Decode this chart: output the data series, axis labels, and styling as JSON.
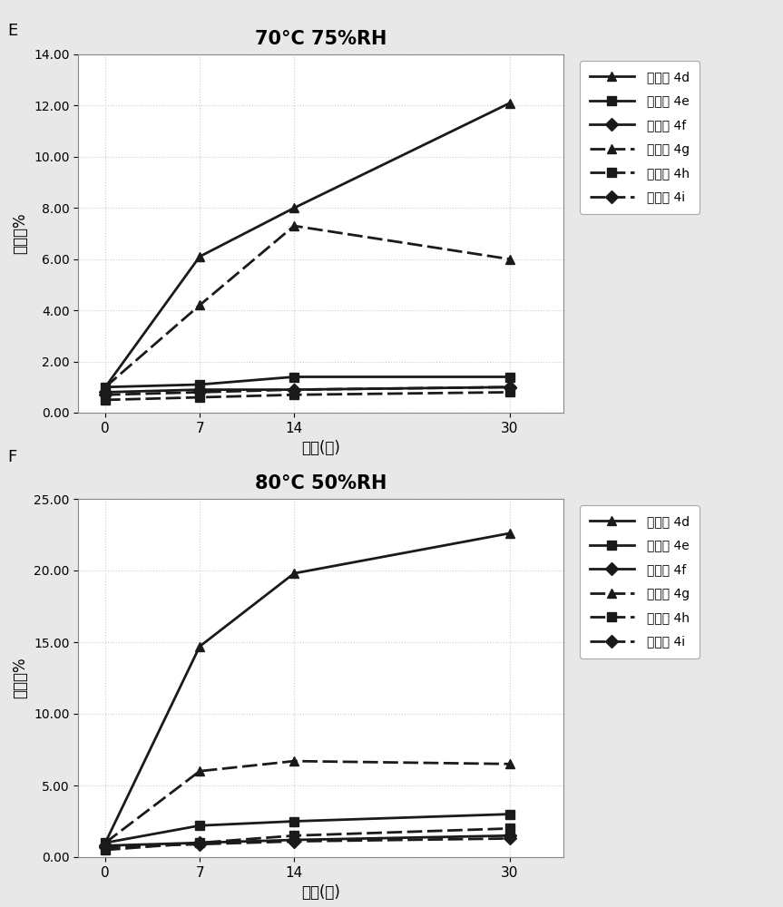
{
  "x": [
    0,
    7,
    14,
    30
  ],
  "chart_E": {
    "title": "70°C 75%RH",
    "ylim": [
      0,
      14.0
    ],
    "yticks": [
      0.0,
      2.0,
      4.0,
      6.0,
      8.0,
      10.0,
      12.0,
      14.0
    ],
    "ytick_labels": [
      "0.00",
      "2.00",
      "4.00",
      "6.00",
      "8.00",
      "10.00",
      "12.00",
      "14.00"
    ],
    "series": {
      "4d": {
        "y": [
          1.0,
          6.1,
          8.0,
          12.1
        ],
        "linestyle": "-",
        "marker": "^",
        "dashes": []
      },
      "4e": {
        "y": [
          1.0,
          1.1,
          1.4,
          1.4
        ],
        "linestyle": "-",
        "marker": "s",
        "dashes": []
      },
      "4f": {
        "y": [
          0.8,
          0.9,
          0.9,
          1.0
        ],
        "linestyle": "-",
        "marker": "D",
        "dashes": []
      },
      "4g": {
        "y": [
          1.0,
          4.2,
          7.3,
          6.0
        ],
        "linestyle": "--",
        "marker": "^",
        "dashes": [
          6,
          2
        ]
      },
      "4h": {
        "y": [
          0.5,
          0.6,
          0.7,
          0.8
        ],
        "linestyle": "--",
        "marker": "s",
        "dashes": [
          6,
          2
        ]
      },
      "4i": {
        "y": [
          0.7,
          0.8,
          0.9,
          1.0
        ],
        "linestyle": "--",
        "marker": "D",
        "dashes": [
          6,
          2
        ]
      }
    }
  },
  "chart_F": {
    "title": "80°C 50%RH",
    "ylim": [
      0,
      25.0
    ],
    "yticks": [
      0.0,
      5.0,
      10.0,
      15.0,
      20.0,
      25.0
    ],
    "ytick_labels": [
      "0.00",
      "5.00",
      "10.00",
      "15.00",
      "20.00",
      "25.00"
    ],
    "series": {
      "4d": {
        "y": [
          1.0,
          14.7,
          19.8,
          22.6
        ],
        "linestyle": "-",
        "marker": "^",
        "dashes": []
      },
      "4e": {
        "y": [
          1.0,
          2.2,
          2.5,
          3.0
        ],
        "linestyle": "-",
        "marker": "s",
        "dashes": []
      },
      "4f": {
        "y": [
          0.8,
          1.0,
          1.2,
          1.5
        ],
        "linestyle": "-",
        "marker": "D",
        "dashes": []
      },
      "4g": {
        "y": [
          1.0,
          6.0,
          6.7,
          6.5
        ],
        "linestyle": "--",
        "marker": "^",
        "dashes": [
          6,
          2
        ]
      },
      "4h": {
        "y": [
          0.5,
          1.0,
          1.5,
          2.0
        ],
        "linestyle": "--",
        "marker": "s",
        "dashes": [
          6,
          2
        ]
      },
      "4i": {
        "y": [
          0.7,
          0.9,
          1.1,
          1.3
        ],
        "linestyle": "--",
        "marker": "D",
        "dashes": [
          6,
          2
        ]
      }
    }
  },
  "legend_labels": [
    "实施例 4d",
    "实施例 4e",
    "实施例 4f",
    "实施例 4g",
    "实施例 4h",
    "实施例 4i"
  ],
  "xlabel": "时间(天)",
  "ylabel": "总降解%",
  "panel_labels": [
    "E",
    "F"
  ],
  "line_color": "#1a1a1a",
  "bg_color": "#e8e8e8",
  "plot_bg": "#ffffff",
  "grid_color": "#cccccc"
}
